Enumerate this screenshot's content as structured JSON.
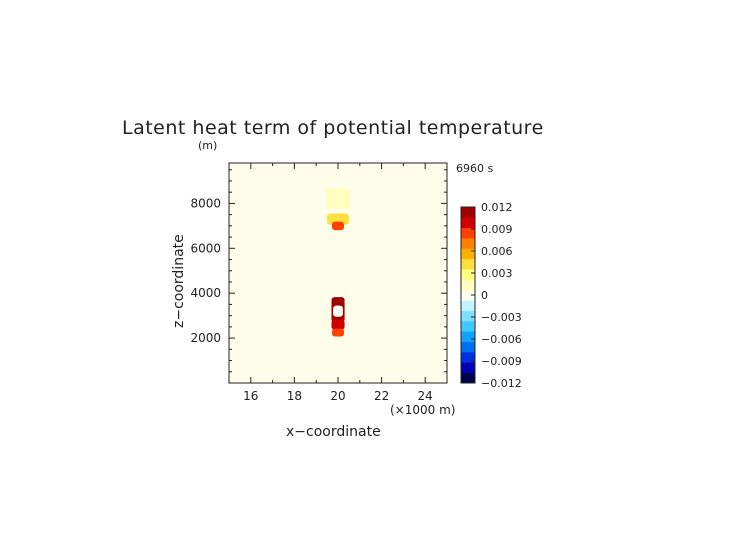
{
  "chart_data": {
    "type": "heatmap",
    "title": "Latent heat term of potential temperature",
    "time_label": "6960 s",
    "xlabel": "x−coordinate",
    "ylabel": "z−coordinate",
    "x_unit": "(×1000 m)",
    "y_unit": "(m)",
    "xlim": [
      15,
      25
    ],
    "ylim": [
      0,
      9800
    ],
    "xticks": [
      16,
      18,
      20,
      22,
      24
    ],
    "yticks": [
      2000,
      4000,
      6000,
      8000
    ],
    "colorbar": {
      "min": -0.012,
      "max": 0.012,
      "ticks": [
        "0.012",
        "0.009",
        "0.006",
        "0.003",
        "0",
        "−0.003",
        "−0.006",
        "−0.009",
        "−0.012"
      ],
      "colors": [
        "#00004c",
        "#0000b4",
        "#0030e0",
        "#0070f0",
        "#10a0ff",
        "#40c8ff",
        "#80e0ff",
        "#c0f4ff",
        "#fffff0",
        "#ffffc0",
        "#ffff80",
        "#ffe040",
        "#ffb000",
        "#ff8000",
        "#ff4000",
        "#d00000",
        "#a00000"
      ]
    },
    "background_value": 0.0005,
    "features": [
      {
        "x": 20.0,
        "z": 8200,
        "value": 0.0015
      },
      {
        "x": 20.0,
        "z": 7300,
        "value": 0.004
      },
      {
        "x": 20.0,
        "z": 7000,
        "value": 0.0085
      },
      {
        "x": 20.0,
        "z": 3650,
        "value": 0.012
      },
      {
        "x": 20.0,
        "z": 3200,
        "value": 0.012
      },
      {
        "x": 20.0,
        "z": 2600,
        "value": 0.011
      },
      {
        "x": 20.0,
        "z": 2250,
        "value": 0.0085
      },
      {
        "x": 20.0,
        "z": 3200,
        "value": -0.0
      },
      {
        "x": 20.0,
        "z": 3250,
        "value": 0.016
      }
    ]
  }
}
